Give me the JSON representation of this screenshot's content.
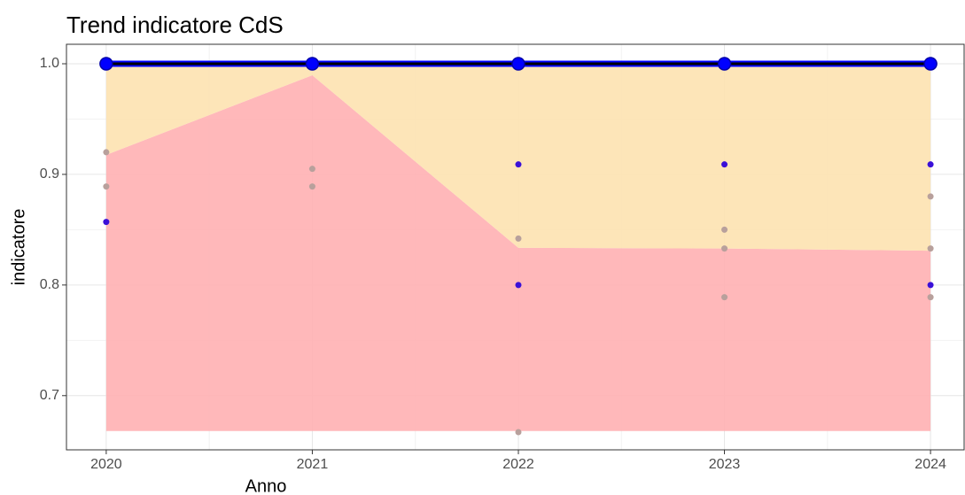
{
  "chart_data": {
    "type": "line",
    "title": "Trend indicatore CdS",
    "x_label": "Anno",
    "y_label": "indicatore",
    "x": [
      2020,
      2021,
      2022,
      2023,
      2024
    ],
    "xlim": [
      2019.807,
      2024.163
    ],
    "xticks": [
      2020,
      2021,
      2022,
      2023,
      2024
    ],
    "x_minor_grid": [
      2020.5,
      2021.5,
      2022.5,
      2023.5
    ],
    "ylim": [
      0.651,
      1.0176
    ],
    "yticks": [
      0.7,
      0.8,
      0.9,
      {
        "value": 1,
        "label": "1.0"
      }
    ],
    "y_minor_grid": [
      0.75,
      0.85,
      0.95
    ],
    "grid": true,
    "areas": [
      {
        "color": "#ffb0b3",
        "lower": [
          0.668,
          0.668,
          0.668,
          0.668,
          0.668
        ],
        "upper": [
          0.9176,
          0.9896,
          0.8336,
          0.833,
          0.831
        ]
      },
      {
        "color": "#fde2b0",
        "lower": [
          0.9176,
          0.9896,
          0.8336,
          0.833,
          0.831
        ],
        "upper": [
          1,
          1,
          1,
          1,
          1
        ]
      }
    ],
    "series": [
      {
        "color": "#0000ff",
        "line_color": "#000000",
        "values": [
          1,
          1,
          1,
          1,
          1
        ]
      }
    ],
    "points": [
      {
        "color": "#b8a09c",
        "x": [
          2020,
          2020,
          2021,
          2021,
          2022,
          2022,
          2023,
          2023,
          2023,
          2024,
          2024,
          2024
        ],
        "values": [
          0.92,
          0.889,
          0.905,
          0.889,
          0.842,
          0.667,
          0.85,
          0.833,
          0.789,
          0.88,
          0.833,
          0.789
        ]
      },
      {
        "color": "#3a10d8",
        "x": [
          2020,
          2022,
          2022,
          2023,
          2024,
          2024
        ],
        "values": [
          0.857,
          0.909,
          0.8,
          0.909,
          0.909,
          0.8
        ]
      }
    ]
  }
}
